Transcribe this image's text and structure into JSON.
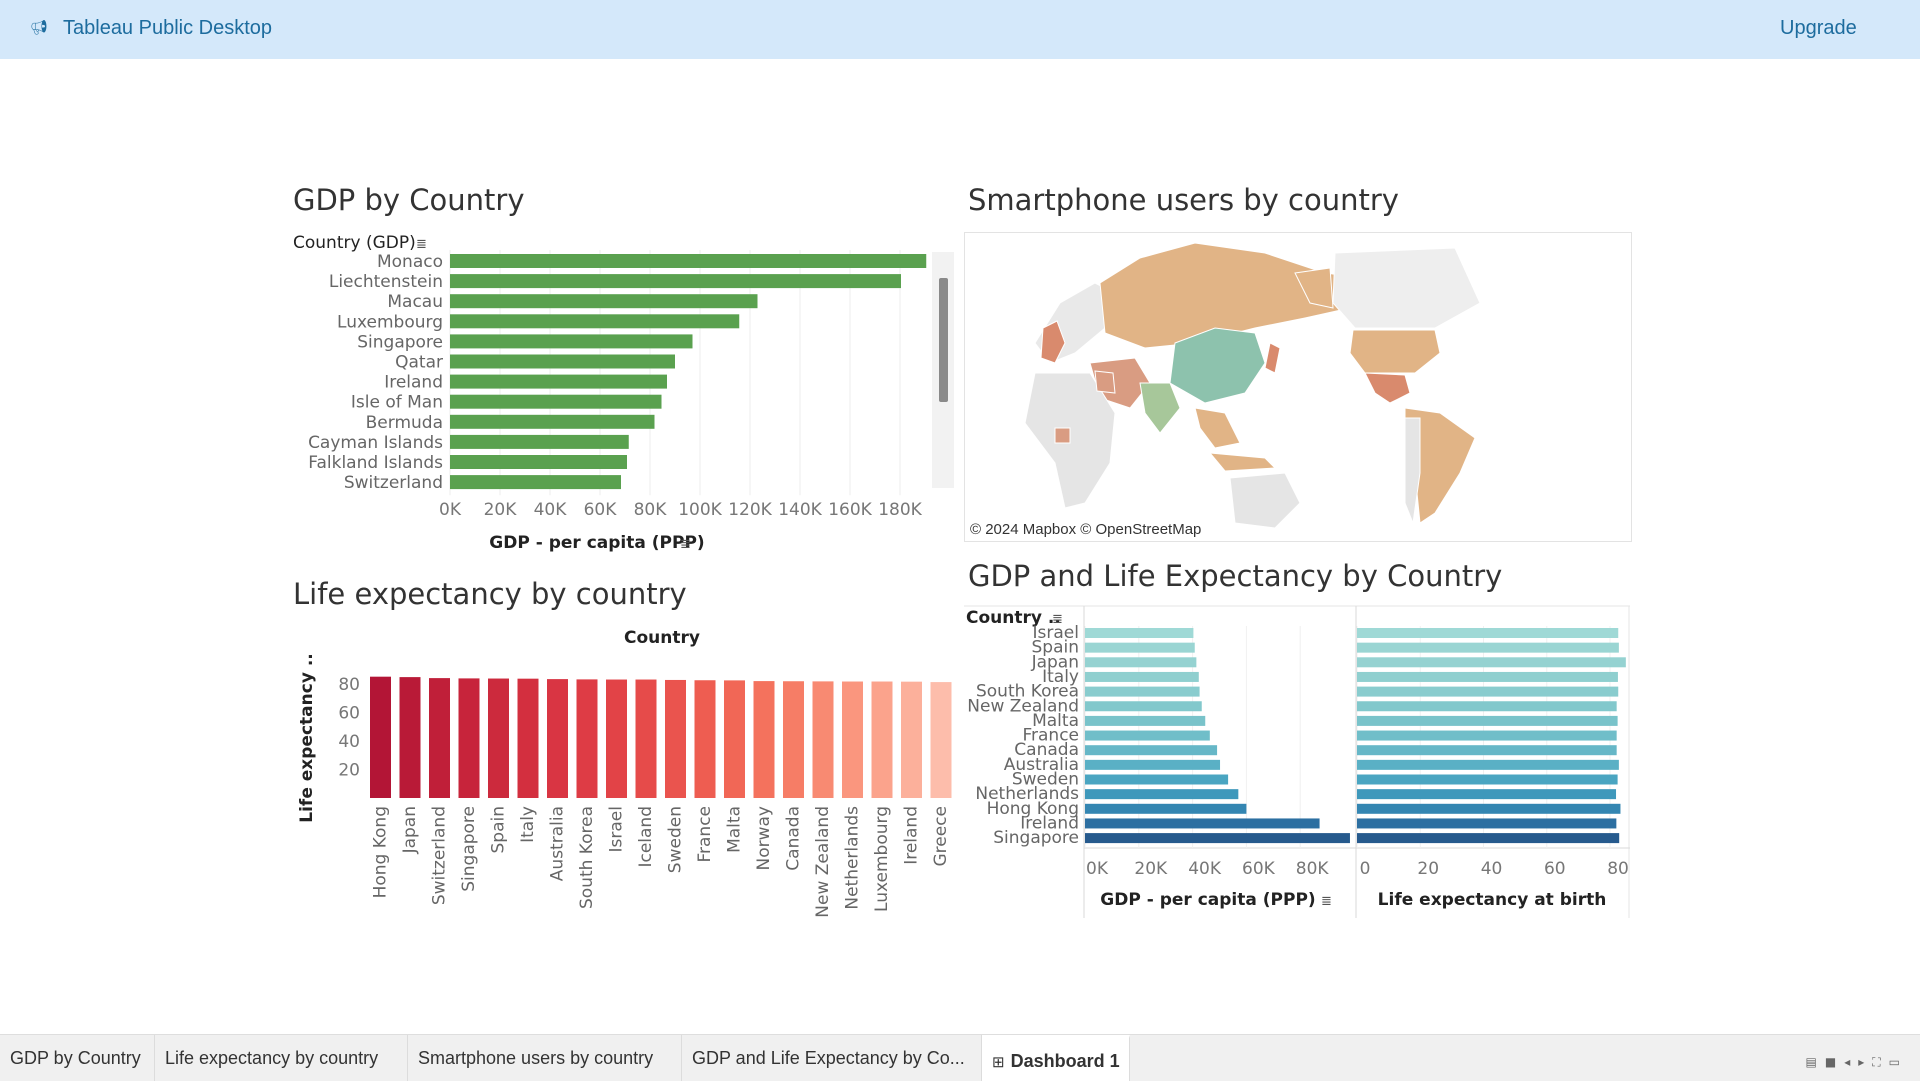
{
  "app": {
    "title": "Tableau Public Desktop",
    "upgrade_label": "Upgrade",
    "logo_icon": "megaphone-icon"
  },
  "sheets": {
    "gdp": {
      "title": "GDP by Country",
      "row_header": "Country (GDP)",
      "axis_title": "GDP - per capita (PPP)",
      "color": "#5aa14f",
      "countries": [
        "Monaco",
        "Liechtenstein",
        "Macau",
        "Luxembourg",
        "Singapore",
        "Qatar",
        "Ireland",
        "Isle of Man",
        "Bermuda",
        "Cayman Islands",
        "Falkland Islands",
        "Switzerland"
      ],
      "values": [
        190500,
        180400,
        123000,
        115700,
        97000,
        90000,
        86800,
        84600,
        81800,
        71500,
        70800,
        68400
      ],
      "ticks": [
        "0K",
        "20K",
        "40K",
        "60K",
        "80K",
        "100K",
        "120K",
        "140K",
        "160K",
        "180K"
      ],
      "tick_values": [
        0,
        20000,
        40000,
        60000,
        80000,
        100000,
        120000,
        140000,
        160000,
        180000
      ],
      "xlim": [
        0,
        200000
      ]
    },
    "life": {
      "title": "Life expectancy by country",
      "column_header": "Country",
      "axis_title": "Life expectancy ..",
      "countries": [
        "Hong Kong",
        "Japan",
        "Switzerland",
        "Singapore",
        "Spain",
        "Italy",
        "Australia",
        "South Korea",
        "Israel",
        "Iceland",
        "Sweden",
        "France",
        "Malta",
        "Norway",
        "Canada",
        "New Zealand",
        "Netherlands",
        "Luxembourg",
        "Ireland",
        "Greece"
      ],
      "values": [
        85.3,
        85.0,
        84.3,
        84.1,
        84.0,
        83.9,
        83.6,
        83.4,
        83.3,
        83.3,
        83.0,
        82.8,
        82.7,
        82.2,
        82.1,
        82.0,
        81.9,
        81.9,
        81.8,
        81.5
      ],
      "colors": [
        "#b31536",
        "#b91a37",
        "#c01f39",
        "#c7243b",
        "#cc2a3d",
        "#d32f3f",
        "#d93543",
        "#de3c45",
        "#e24347",
        "#e64b4a",
        "#ea544e",
        "#ee5d51",
        "#f16756",
        "#f4725d",
        "#f67d66",
        "#f88a72",
        "#fa967e",
        "#fba38c",
        "#fcb09b",
        "#fdbdab"
      ],
      "ticks": [
        "20",
        "40",
        "60",
        "80"
      ],
      "tick_values": [
        20,
        40,
        60,
        80
      ],
      "ylim": [
        0,
        90
      ]
    },
    "map": {
      "title": "Smartphone users by country",
      "attribution": "© 2024 Mapbox © OpenStreetMap"
    },
    "combo": {
      "title": "GDP and Life Expectancy by Country",
      "row_header": "Country ..",
      "gdp_axis_title": "GDP - per capita (PPP)",
      "life_axis_title": "Life expectancy at birth",
      "countries": [
        "Israel",
        "Spain",
        "Japan",
        "Italy",
        "South Korea",
        "New Zealand",
        "Malta",
        "France",
        "Canada",
        "Australia",
        "Sweden",
        "Netherlands",
        "Hong Kong",
        "Ireland",
        "Singapore"
      ],
      "gdp_values": [
        40300,
        40800,
        41400,
        42300,
        42600,
        43400,
        44700,
        46400,
        49100,
        50200,
        53200,
        57000,
        60000,
        87200,
        98500
      ],
      "life_values": [
        82.6,
        82.8,
        85.0,
        82.5,
        82.6,
        82.1,
        82.4,
        82.1,
        82.1,
        82.8,
        82.4,
        81.9,
        83.3,
        82.0,
        82.9
      ],
      "colors": [
        "#9fd9d6",
        "#9ad5d3",
        "#95d2d1",
        "#8fcfcf",
        "#89ccce",
        "#82c8cc",
        "#79c3ca",
        "#70bec9",
        "#66b7c7",
        "#5ab0c5",
        "#4aa5c1",
        "#3e98bb",
        "#3486b2",
        "#2c6fa1",
        "#265a8d"
      ],
      "gdp_ticks": [
        "0K",
        "20K",
        "40K",
        "60K",
        "80K"
      ],
      "gdp_tick_values": [
        0,
        20000,
        40000,
        60000,
        80000
      ],
      "gdp_xlim": [
        0,
        100000
      ],
      "life_ticks": [
        "0",
        "20",
        "40",
        "60",
        "80"
      ],
      "life_tick_values": [
        0,
        20,
        40,
        60,
        80
      ],
      "life_xlim": [
        0,
        86
      ]
    }
  },
  "tabs": [
    {
      "label": "GDP by Country"
    },
    {
      "label": "Life expectancy by country"
    },
    {
      "label": "Smartphone users by country"
    },
    {
      "label": "GDP and Life Expectancy by Co..."
    },
    {
      "label": "Dashboard 1",
      "icon": "dashboard-grid-icon"
    }
  ],
  "chart_data": [
    {
      "type": "bar",
      "title": "GDP by Country",
      "orientation": "horizontal",
      "categories": [
        "Monaco",
        "Liechtenstein",
        "Macau",
        "Luxembourg",
        "Singapore",
        "Qatar",
        "Ireland",
        "Isle of Man",
        "Bermuda",
        "Cayman Islands",
        "Falkland Islands",
        "Switzerland"
      ],
      "values": [
        190500,
        180400,
        123000,
        115700,
        97000,
        90000,
        86800,
        84600,
        81800,
        71500,
        70800,
        68400
      ],
      "xlabel": "GDP - per capita (PPP)",
      "ylabel": "Country (GDP)",
      "xlim": [
        0,
        200000
      ]
    },
    {
      "type": "bar",
      "title": "Life expectancy by country",
      "categories": [
        "Hong Kong",
        "Japan",
        "Switzerland",
        "Singapore",
        "Spain",
        "Italy",
        "Australia",
        "South Korea",
        "Israel",
        "Iceland",
        "Sweden",
        "France",
        "Malta",
        "Norway",
        "Canada",
        "New Zealand",
        "Netherlands",
        "Luxembourg",
        "Ireland",
        "Greece"
      ],
      "values": [
        85.3,
        85.0,
        84.3,
        84.1,
        84.0,
        83.9,
        83.6,
        83.4,
        83.3,
        83.3,
        83.0,
        82.8,
        82.7,
        82.2,
        82.1,
        82.0,
        81.9,
        81.9,
        81.8,
        81.5
      ],
      "xlabel": "Country",
      "ylabel": "Life expectancy ..",
      "ylim": [
        0,
        90
      ]
    },
    {
      "type": "bar",
      "title": "GDP and Life Expectancy by Country",
      "orientation": "horizontal",
      "categories": [
        "Israel",
        "Spain",
        "Japan",
        "Italy",
        "South Korea",
        "New Zealand",
        "Malta",
        "France",
        "Canada",
        "Australia",
        "Sweden",
        "Netherlands",
        "Hong Kong",
        "Ireland",
        "Singapore"
      ],
      "series": [
        {
          "name": "GDP - per capita (PPP)",
          "values": [
            40300,
            40800,
            41400,
            42300,
            42600,
            43400,
            44700,
            46400,
            49100,
            50200,
            53200,
            57000,
            60000,
            87200,
            98500
          ]
        },
        {
          "name": "Life expectancy at birth",
          "values": [
            82.6,
            82.8,
            85.0,
            82.5,
            82.6,
            82.1,
            82.4,
            82.1,
            82.1,
            82.8,
            82.4,
            81.9,
            83.3,
            82.0,
            82.9
          ]
        }
      ],
      "ylabel": "Country .."
    }
  ]
}
